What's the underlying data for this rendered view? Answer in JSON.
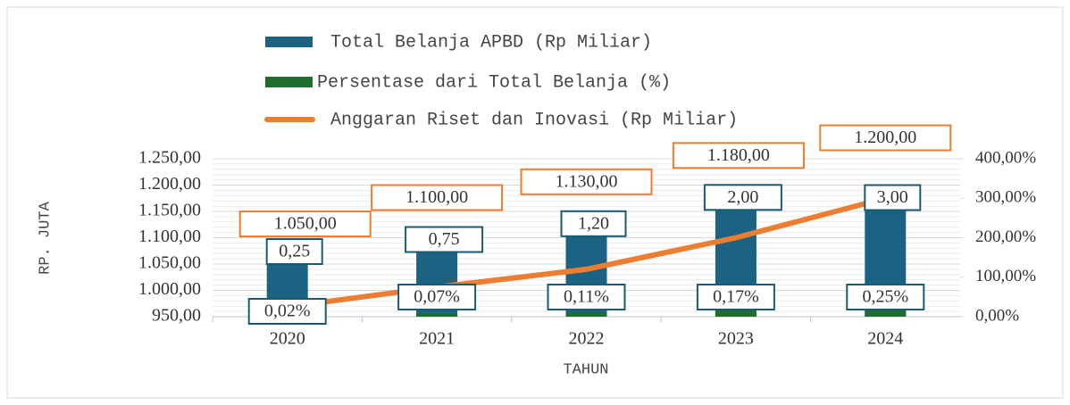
{
  "chart_data": {
    "type": "bar",
    "categories": [
      "2020",
      "2021",
      "2022",
      "2023",
      "2024"
    ],
    "y_label": "RP. JUTA",
    "x_label": "TAHUN",
    "series": [
      {
        "name": "Total Belanja APBD (Rp Miliar)",
        "color": "#1b6283",
        "type": "bar",
        "values": [
          1050,
          1100,
          1130,
          1180,
          1200
        ],
        "value_labels": [
          "1.050,00",
          "1.100,00",
          "1.130,00",
          "1.180,00",
          "1.200,00"
        ]
      },
      {
        "name": "Persentase dari Total Belanja (%)",
        "color": "#1f6e2e",
        "type": "bar",
        "axis": "y2",
        "values": [
          0.02,
          0.07,
          0.11,
          0.17,
          0.25
        ],
        "value_labels": [
          "0,02%",
          "0,07%",
          "0,11%",
          "0,17%",
          "0,25%"
        ]
      },
      {
        "name": "Anggaran Riset dan Inovasi (Rp Miliar)",
        "color": "#ed7d31",
        "type": "line",
        "axis": "y2",
        "values": [
          0.25,
          0.75,
          1.2,
          2,
          3
        ],
        "value_labels": [
          "0,25",
          "0,75",
          "1,20",
          "2,00",
          "3,00"
        ]
      }
    ],
    "ylim": [
      950,
      1250
    ],
    "yticks": [
      {
        "value": 950,
        "label": "950,00"
      },
      {
        "value": 1000,
        "label": "1.000,00"
      },
      {
        "value": 1050,
        "label": "1.050,00"
      },
      {
        "value": 1100,
        "label": "1.100,00"
      },
      {
        "value": 1150,
        "label": "1.150,00"
      },
      {
        "value": 1200,
        "label": "1.200,00"
      },
      {
        "value": 1250,
        "label": "1.250,00"
      }
    ],
    "y2lim": [
      0,
      4
    ],
    "y2ticks": [
      {
        "value": 0,
        "label": "0,00%"
      },
      {
        "value": 1,
        "label": "100,00%"
      },
      {
        "value": 2,
        "label": "200,00%"
      },
      {
        "value": 3,
        "label": "300,00%"
      },
      {
        "value": 4,
        "label": "400,00%"
      }
    ],
    "grid": true,
    "legend": "top"
  }
}
